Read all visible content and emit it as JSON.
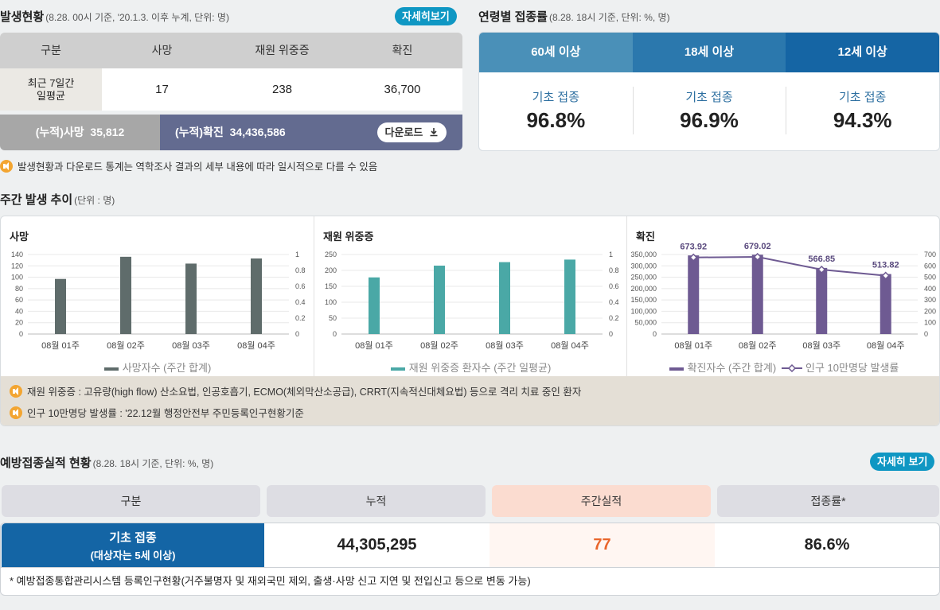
{
  "occurrence": {
    "title": "발생현황",
    "subtitle": "(8.28. 00시 기준, '20.1.3. 이후 누계, 단위: 명)",
    "detail_button": "자세히보기",
    "columns": [
      "구분",
      "사망",
      "재원 위중증",
      "확진"
    ],
    "row_label": "최근 7일간 일평균",
    "row_label_lines": [
      "최근 7일간",
      "일평균"
    ],
    "row_values": [
      "17",
      "238",
      "36,700"
    ],
    "cum_death_label": "(누적)사망",
    "cum_death_value": "35,812",
    "cum_conf_label": "(누적)확진",
    "cum_conf_value": "34,436,586",
    "download_label": "다운로드",
    "note": "발생현황과 다운로드 통계는 역학조사 결과의 세부 내용에 따라 일시적으로 다를 수 있음"
  },
  "age_vaccination": {
    "title": "연령별 접종률",
    "subtitle": "(8.28. 18시 기준, 단위: %, 명)",
    "tabs": [
      {
        "label": "60세 이상",
        "color": "#4a90b8"
      },
      {
        "label": "18세 이상",
        "color": "#2b78ad"
      },
      {
        "label": "12세 이상",
        "color": "#1565a4"
      }
    ],
    "values": [
      {
        "label": "기초 접종",
        "value": "96.8%"
      },
      {
        "label": "기초 접종",
        "value": "96.9%"
      },
      {
        "label": "기초 접종",
        "value": "94.3%"
      }
    ]
  },
  "weekly": {
    "title": "주간 발생 추이",
    "subtitle": "(단위 : 명)",
    "notes": [
      "재원 위중증 : 고유량(high flow) 산소요법, 인공호흡기, ECMO(체외막산소공급), CRRT(지속적신대체요법) 등으로 격리 치료 중인 환자",
      "인구 10만명당 발생률 : '22.12월 행정안전부 주민등록인구현황기준"
    ]
  },
  "chart_data": [
    {
      "type": "bar",
      "title": "사망",
      "categories": [
        "08월 01주",
        "08월 02주",
        "08월 03주",
        "08월 04주"
      ],
      "series": [
        {
          "name": "사망자수 (주간 합계)",
          "values": [
            97,
            136,
            124,
            133
          ],
          "color": "#5f6c6b"
        }
      ],
      "ylim": [
        0,
        140
      ],
      "yticks": [
        "0",
        "20",
        "40",
        "60",
        "80",
        "100",
        "120",
        "140"
      ],
      "y2ticks": [
        "0",
        "0.2",
        "0.4",
        "0.6",
        "0.8",
        "1"
      ],
      "legend": "bottom"
    },
    {
      "type": "bar",
      "title": "재원 위중증",
      "categories": [
        "08월 01주",
        "08월 02주",
        "08월 03주",
        "08월 04주"
      ],
      "series": [
        {
          "name": "재원 위중증 환자수 (주간 일평균)",
          "values": [
            178,
            215,
            226,
            234
          ],
          "color": "#4aa8a6"
        }
      ],
      "ylim": [
        0,
        250
      ],
      "yticks": [
        "0",
        "50",
        "100",
        "150",
        "200",
        "250"
      ],
      "y2ticks": [
        "0",
        "0.2",
        "0.4",
        "0.6",
        "0.8",
        "1"
      ],
      "legend": "bottom"
    },
    {
      "type": "bar",
      "title": "확진",
      "categories": [
        "08월 01주",
        "08월 02주",
        "08월 03주",
        "08월 04주"
      ],
      "series": [
        {
          "name": "확진자수 (주간 합계)",
          "values": [
            346000,
            349000,
            291000,
            264000
          ],
          "color": "#6e5a92"
        },
        {
          "name": "인구 10만명당 발생률",
          "values": [
            673.92,
            679.02,
            566.85,
            513.82
          ],
          "labels": [
            "673.92",
            "679.02",
            "566.85",
            "513.82"
          ],
          "color": "#6e5a92",
          "type": "line"
        }
      ],
      "ylim": [
        0,
        350000
      ],
      "y2lim": [
        0,
        700
      ],
      "yticks": [
        "0",
        "50,000",
        "100,000",
        "150,000",
        "200,000",
        "250,000",
        "300,000",
        "350,000"
      ],
      "y2ticks": [
        "0",
        "100",
        "200",
        "300",
        "400",
        "500",
        "600",
        "700"
      ],
      "legend": "bottom"
    }
  ],
  "performance": {
    "title": "예방접종실적 현황",
    "subtitle": "(8.28. 18시 기준, 단위: %, 명)",
    "detail_button": "자세히 보기",
    "columns": [
      {
        "label": "구분",
        "bg": "#dddde3"
      },
      {
        "label": "누적",
        "bg": "#dddde3"
      },
      {
        "label": "주간실적",
        "bg": "#fbdcd0"
      },
      {
        "label": "접종률*",
        "bg": "#dddde3"
      }
    ],
    "row_label": "기초 접종",
    "row_sublabel": "(대상자는 5세 이상)",
    "cumulative": "44,305,295",
    "weekly": "77",
    "weekly_color": "#e9652b",
    "rate": "86.6%",
    "footnote": "* 예방접종통합관리시스템 등록인구현황(거주불명자 및 재외국민 제외, 출생·사망 신고 지연 및 전입신고 등으로 변동 가능)"
  }
}
